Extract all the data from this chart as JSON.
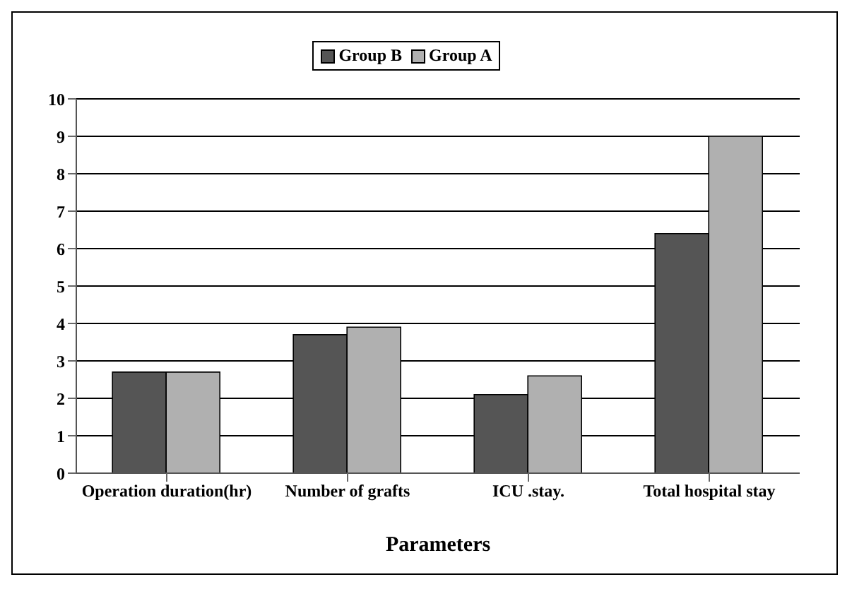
{
  "chart_data": {
    "type": "bar",
    "xlabel": "Parameters",
    "categories": [
      "Operation duration(hr)",
      "Number of grafts",
      "ICU .stay.",
      "Total hospital stay"
    ],
    "series": [
      {
        "name": "Group B",
        "color": "#555555",
        "values": [
          2.7,
          3.7,
          2.1,
          6.4
        ]
      },
      {
        "name": "Group A",
        "color": "#b0b0b0",
        "values": [
          2.7,
          3.9,
          2.6,
          9.0
        ]
      }
    ],
    "ylim": [
      0,
      10
    ],
    "yticks": [
      0,
      1,
      2,
      3,
      4,
      5,
      6,
      7,
      8,
      9,
      10
    ],
    "grid": "y",
    "legend": "top"
  }
}
